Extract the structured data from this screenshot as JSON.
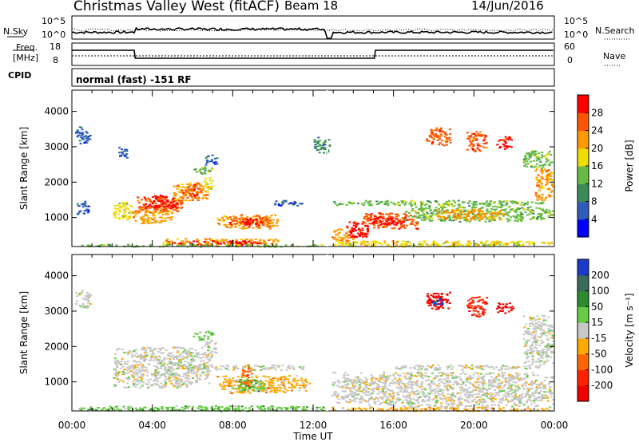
{
  "header": {
    "radar": "Christmas Valley West (fitACF)",
    "beam": "Beam 18",
    "date": "14/Jun/2016"
  },
  "strip_labels": {
    "nsky": "N.Sky",
    "nsearch": "N.Search",
    "freq_line1": "Freq.",
    "freq_line2": "[MHz]",
    "nave": "Nave",
    "cpid": "CPID",
    "mode": "normal (fast) -151 RF",
    "noise_ticks": [
      "10^5",
      "10^0"
    ],
    "freq_ticks": [
      "18",
      "8"
    ],
    "nave_ticks": [
      "60",
      "0"
    ]
  },
  "chart_data": [
    {
      "type": "heatmap",
      "name": "power",
      "xlabel": "Time UT",
      "ylabel": "Slant Range [km]",
      "x_ticks": [
        "00:00",
        "04:00",
        "08:00",
        "12:00",
        "16:00",
        "20:00",
        "00:00"
      ],
      "x_range_hours": [
        0,
        24
      ],
      "y_ticks": [
        1000,
        2000,
        3000,
        4000
      ],
      "ylim": [
        180,
        4600
      ],
      "colorbar": {
        "label": "Power [dB]",
        "ticks": [
          4,
          8,
          12,
          16,
          20,
          24,
          28
        ],
        "colors": [
          "#0000ff",
          "#2e5cb8",
          "#3a8a5a",
          "#66bb44",
          "#eedd00",
          "#ff9900",
          "#ff5500",
          "#ff0000"
        ]
      },
      "regions": [
        {
          "t0": 0.15,
          "t1": 0.9,
          "r0": 3100,
          "r1": 3600,
          "c": 1
        },
        {
          "t0": 0.2,
          "t1": 0.8,
          "r0": 1100,
          "r1": 1500,
          "c": 1
        },
        {
          "t0": 2.3,
          "t1": 2.7,
          "r0": 2700,
          "r1": 3000,
          "c": 1
        },
        {
          "t0": 2.0,
          "t1": 3.0,
          "r0": 950,
          "r1": 1450,
          "c": 4
        },
        {
          "t0": 2.8,
          "t1": 5.0,
          "r0": 850,
          "r1": 1300,
          "c": 5
        },
        {
          "t0": 3.2,
          "t1": 5.5,
          "r0": 1150,
          "r1": 1600,
          "c": 6
        },
        {
          "t0": 3.6,
          "t1": 5.2,
          "r0": 1250,
          "r1": 1650,
          "c": 7
        },
        {
          "t0": 5.0,
          "t1": 6.8,
          "r0": 1500,
          "r1": 2000,
          "c": 5
        },
        {
          "t0": 5.4,
          "t1": 6.4,
          "r0": 1600,
          "r1": 1950,
          "c": 6
        },
        {
          "t0": 6.5,
          "t1": 7.0,
          "r0": 1800,
          "r1": 2150,
          "c": 4
        },
        {
          "t0": 6.6,
          "t1": 7.2,
          "r0": 2500,
          "r1": 2800,
          "c": 1
        },
        {
          "t0": 6.0,
          "t1": 7.0,
          "r0": 2250,
          "r1": 2450,
          "c": 3
        },
        {
          "t0": 7.2,
          "t1": 10.2,
          "r0": 700,
          "r1": 1100,
          "c": 5
        },
        {
          "t0": 7.8,
          "t1": 9.8,
          "r0": 750,
          "r1": 1050,
          "c": 6
        },
        {
          "t0": 8.4,
          "t1": 9.4,
          "r0": 800,
          "r1": 1000,
          "c": 7
        },
        {
          "t0": 10.0,
          "t1": 11.4,
          "r0": 1350,
          "r1": 1500,
          "c": 1
        },
        {
          "t0": 4.5,
          "t1": 10.5,
          "r0": 220,
          "r1": 420,
          "c": 5
        },
        {
          "t0": 5.0,
          "t1": 9.5,
          "r0": 230,
          "r1": 360,
          "c": 7
        },
        {
          "t0": 0.2,
          "t1": 12.6,
          "r0": 190,
          "r1": 260,
          "c": 3
        },
        {
          "t0": 12.9,
          "t1": 14.0,
          "r0": 300,
          "r1": 700,
          "c": 5
        },
        {
          "t0": 13.6,
          "t1": 14.7,
          "r0": 400,
          "r1": 900,
          "c": 7
        },
        {
          "t0": 14.4,
          "t1": 17.2,
          "r0": 700,
          "r1": 1150,
          "c": 6
        },
        {
          "t0": 14.8,
          "t1": 16.6,
          "r0": 800,
          "r1": 1050,
          "c": 7
        },
        {
          "t0": 16.5,
          "t1": 23.9,
          "r0": 900,
          "r1": 1350,
          "c": 3
        },
        {
          "t0": 18.0,
          "t1": 21.5,
          "r0": 950,
          "r1": 1250,
          "c": 5
        },
        {
          "t0": 12.9,
          "t1": 23.9,
          "r0": 190,
          "r1": 360,
          "c": 4
        },
        {
          "t0": 13.0,
          "t1": 23.5,
          "r0": 1350,
          "r1": 1500,
          "c": 3
        },
        {
          "t0": 17.6,
          "t1": 18.8,
          "r0": 3050,
          "r1": 3550,
          "c": 6
        },
        {
          "t0": 19.6,
          "t1": 20.6,
          "r0": 2850,
          "r1": 3450,
          "c": 6
        },
        {
          "t0": 21.1,
          "t1": 21.9,
          "r0": 2950,
          "r1": 3300,
          "c": 7
        },
        {
          "t0": 23.0,
          "t1": 23.9,
          "r0": 1500,
          "r1": 2400,
          "c": 5
        },
        {
          "t0": 22.4,
          "t1": 23.9,
          "r0": 2400,
          "r1": 2900,
          "c": 3
        },
        {
          "t0": 12.0,
          "t1": 12.8,
          "r0": 2800,
          "r1": 3300,
          "c": 2
        }
      ]
    },
    {
      "type": "heatmap",
      "name": "velocity",
      "xlabel": "Time UT",
      "ylabel": "Slant Range [km]",
      "x_ticks": [
        "00:00",
        "04:00",
        "08:00",
        "12:00",
        "16:00",
        "20:00",
        "00:00"
      ],
      "x_range_hours": [
        0,
        24
      ],
      "y_ticks": [
        1000,
        2000,
        3000,
        4000
      ],
      "ylim": [
        180,
        4600
      ],
      "colorbar": {
        "label": "Velocity [m s⁻¹]",
        "ticks": [
          200,
          100,
          50,
          15,
          -15,
          -50,
          -100,
          -200
        ],
        "colors": [
          "#1a3acc",
          "#3a6a5a",
          "#2d8a2d",
          "#66cc44",
          "#c8c8c8",
          "#ffaa00",
          "#ff6600",
          "#ff2200",
          "#ee0000"
        ]
      },
      "regions": [
        {
          "t0": 0.15,
          "t1": 0.9,
          "r0": 3100,
          "r1": 3600,
          "c": 4
        },
        {
          "t0": 2.0,
          "t1": 6.8,
          "r0": 850,
          "r1": 2000,
          "c": 4
        },
        {
          "t0": 6.5,
          "t1": 7.2,
          "r0": 1700,
          "r1": 2200,
          "c": 4
        },
        {
          "t0": 7.2,
          "t1": 11.8,
          "r0": 700,
          "r1": 1200,
          "c": 5
        },
        {
          "t0": 7.8,
          "t1": 9.6,
          "r0": 750,
          "r1": 1100,
          "c": 3
        },
        {
          "t0": 8.4,
          "t1": 8.9,
          "r0": 900,
          "r1": 1550,
          "c": 6
        },
        {
          "t0": 5.5,
          "t1": 11.5,
          "r0": 1350,
          "r1": 1500,
          "c": 4
        },
        {
          "t0": 0.2,
          "t1": 12.6,
          "r0": 190,
          "r1": 350,
          "c": 3
        },
        {
          "t0": 12.9,
          "t1": 23.9,
          "r0": 300,
          "r1": 1300,
          "c": 4
        },
        {
          "t0": 16.0,
          "t1": 23.5,
          "r0": 1350,
          "r1": 1500,
          "c": 4
        },
        {
          "t0": 12.9,
          "t1": 23.9,
          "r0": 190,
          "r1": 300,
          "c": 5
        },
        {
          "t0": 17.6,
          "t1": 18.8,
          "r0": 3050,
          "r1": 3550,
          "c": 8
        },
        {
          "t0": 17.9,
          "t1": 18.4,
          "r0": 3200,
          "r1": 3400,
          "c": 0
        },
        {
          "t0": 19.6,
          "t1": 20.6,
          "r0": 2850,
          "r1": 3450,
          "c": 7
        },
        {
          "t0": 21.1,
          "t1": 21.9,
          "r0": 2950,
          "r1": 3300,
          "c": 8
        },
        {
          "t0": 22.4,
          "t1": 23.9,
          "r0": 1500,
          "r1": 2900,
          "c": 4
        },
        {
          "t0": 6.0,
          "t1": 7.0,
          "r0": 2200,
          "r1": 2450,
          "c": 3
        }
      ]
    }
  ]
}
